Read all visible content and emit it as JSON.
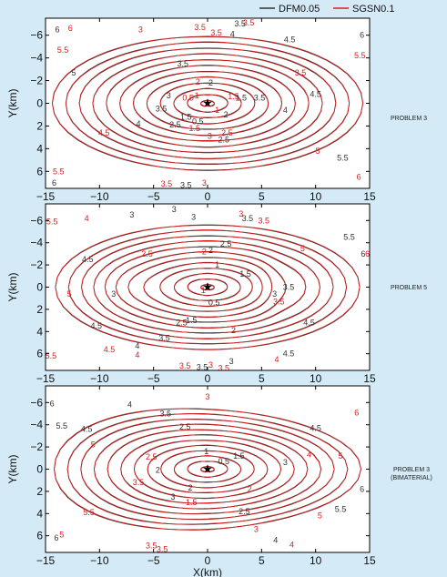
{
  "legend": {
    "items": [
      {
        "label": "DFM0.05",
        "color": "#333333"
      },
      {
        "label": "SGSN0.1",
        "color": "#d62020"
      }
    ],
    "placement": "top-center"
  },
  "chart_data": [
    {
      "type": "contour",
      "panel_label": "PROBLEM 3",
      "xlabel": "",
      "ylabel": "Y(km)",
      "xlim": [
        -15,
        15
      ],
      "ylim": [
        7.5,
        -7.5
      ],
      "x_ticks": [
        -15,
        -10,
        -5,
        0,
        5,
        10,
        15
      ],
      "y_ticks": [
        -6,
        -4,
        -2,
        0,
        2,
        4,
        6
      ],
      "hypocenter": {
        "x": 0,
        "y": 0,
        "marker": "star"
      },
      "contour_levels": [
        0.5,
        1,
        1.5,
        2,
        2.5,
        3,
        3.5,
        4,
        4.5,
        5,
        5.5,
        6
      ],
      "series": [
        {
          "name": "DFM0.05"
        },
        {
          "name": "SGSN0.1"
        }
      ],
      "contour_labels": [
        {
          "t": "0.5",
          "x": -0.9,
          "y": 1.6,
          "c": "k"
        },
        {
          "t": "1",
          "x": -1.0,
          "y": -0.7,
          "c": "r"
        },
        {
          "t": "0.5",
          "x": -1.8,
          "y": -0.5,
          "c": "r"
        },
        {
          "t": "1.5",
          "x": -2.0,
          "y": 1.2,
          "c": "k"
        },
        {
          "t": "1.5",
          "x": -1.2,
          "y": 2.2,
          "c": "r"
        },
        {
          "t": "2",
          "x": 0.3,
          "y": -1.8,
          "c": "k"
        },
        {
          "t": "2",
          "x": -0.9,
          "y": -1.9,
          "c": "r"
        },
        {
          "t": "2.5",
          "x": -3.0,
          "y": 1.9,
          "c": "k"
        },
        {
          "t": "2.5",
          "x": 1.5,
          "y": 3.2,
          "c": "k"
        },
        {
          "t": "1.5",
          "x": 2.4,
          "y": -0.6,
          "c": "r"
        },
        {
          "t": "1.5",
          "x": 3.1,
          "y": -0.5,
          "c": "k"
        },
        {
          "t": "1",
          "x": 0.9,
          "y": 0.6,
          "c": "r"
        },
        {
          "t": "3",
          "x": 0.2,
          "y": 2.9,
          "c": "r"
        },
        {
          "t": "3",
          "x": -3.6,
          "y": -0.7,
          "c": "k"
        },
        {
          "t": "3.5",
          "x": -2.3,
          "y": -3.5,
          "c": "k"
        },
        {
          "t": "3.5",
          "x": 4.8,
          "y": -0.5,
          "c": "k"
        },
        {
          "t": "3.5",
          "x": -4.3,
          "y": 0.5,
          "c": "k"
        },
        {
          "t": "3.5",
          "x": -0.7,
          "y": -6.7,
          "c": "r"
        },
        {
          "t": "3.5",
          "x": 0.8,
          "y": -6.2,
          "c": "r"
        },
        {
          "t": "3",
          "x": -6.2,
          "y": -6.5,
          "c": "r"
        },
        {
          "t": "3.5",
          "x": 3.0,
          "y": -7.0,
          "c": "k"
        },
        {
          "t": "4",
          "x": 2.3,
          "y": -6.1,
          "c": "k"
        },
        {
          "t": "4",
          "x": -6.4,
          "y": 1.8,
          "c": "k"
        },
        {
          "t": "4",
          "x": 7.2,
          "y": 0.6,
          "c": "k"
        },
        {
          "t": "3.5",
          "x": 8.6,
          "y": -2.7,
          "c": "r"
        },
        {
          "t": "4.5",
          "x": -9.6,
          "y": 2.6,
          "c": "r"
        },
        {
          "t": "4.5",
          "x": 7.6,
          "y": -5.6,
          "c": "k"
        },
        {
          "t": "4.5",
          "x": 10.0,
          "y": -0.8,
          "c": "k"
        },
        {
          "t": "5",
          "x": -12.4,
          "y": -2.7,
          "c": "k"
        },
        {
          "t": "5",
          "x": 10.2,
          "y": 4.2,
          "c": "r"
        },
        {
          "t": "5.5",
          "x": -13.4,
          "y": -4.7,
          "c": "r"
        },
        {
          "t": "5.5",
          "x": 12.5,
          "y": 4.8,
          "c": "k"
        },
        {
          "t": "5.5",
          "x": 14.1,
          "y": -4.2,
          "c": "r"
        },
        {
          "t": "6",
          "x": -13.9,
          "y": -6.5,
          "c": "k"
        },
        {
          "t": "6",
          "x": -12.7,
          "y": -6.6,
          "c": "r"
        },
        {
          "t": "6",
          "x": 14.3,
          "y": -6.0,
          "c": "k"
        },
        {
          "t": "5.5",
          "x": -13.8,
          "y": 6.0,
          "c": "r"
        },
        {
          "t": "6",
          "x": -14.2,
          "y": 7.0,
          "c": "k"
        },
        {
          "t": "6",
          "x": 14.0,
          "y": 6.5,
          "c": "r"
        },
        {
          "t": "3.5",
          "x": -2.0,
          "y": 7.2,
          "c": "k"
        },
        {
          "t": "3.5",
          "x": -3.8,
          "y": 7.1,
          "c": "r"
        },
        {
          "t": "3",
          "x": -0.3,
          "y": 7.0,
          "c": "r"
        },
        {
          "t": "3.5",
          "x": 3.8,
          "y": -7.1,
          "c": "r"
        },
        {
          "t": "2.5",
          "x": 1.8,
          "y": 2.6,
          "c": "r"
        },
        {
          "t": "2",
          "x": 1.7,
          "y": 1.0,
          "c": "k"
        }
      ]
    },
    {
      "type": "contour",
      "panel_label": "PROBLEM 5",
      "xlabel": "",
      "ylabel": "Y(km)",
      "xlim": [
        -15,
        15
      ],
      "ylim": [
        7.5,
        -7.5
      ],
      "x_ticks": [
        -15,
        -10,
        -5,
        0,
        5,
        10,
        15
      ],
      "y_ticks": [
        -6,
        -4,
        -2,
        0,
        2,
        4,
        6
      ],
      "hypocenter": {
        "x": 0,
        "y": 0,
        "marker": "star"
      },
      "contour_levels": [
        0.5,
        1,
        1.5,
        2,
        2.5,
        3,
        3.5,
        4,
        4.5,
        5,
        5.5,
        6
      ],
      "series": [
        {
          "name": "DFM0.05"
        },
        {
          "name": "SGSN0.1"
        }
      ],
      "contour_labels": [
        {
          "t": "0.5",
          "x": 0.6,
          "y": 1.4,
          "c": "k"
        },
        {
          "t": "1",
          "x": -0.4,
          "y": 0.3,
          "c": "r"
        },
        {
          "t": "1",
          "x": 0.9,
          "y": -2.0,
          "c": "k"
        },
        {
          "t": "2",
          "x": -0.3,
          "y": -3.2,
          "c": "r"
        },
        {
          "t": "2",
          "x": 0.3,
          "y": -3.3,
          "c": "k"
        },
        {
          "t": "2.5",
          "x": 1.7,
          "y": -3.9,
          "c": "k"
        },
        {
          "t": "2.5",
          "x": -5.6,
          "y": -3.0,
          "c": "r"
        },
        {
          "t": "3",
          "x": -3.1,
          "y": -7.0,
          "c": "k"
        },
        {
          "t": "3",
          "x": -1.3,
          "y": -6.3,
          "c": "k"
        },
        {
          "t": "3",
          "x": 3.1,
          "y": -6.6,
          "c": "r"
        },
        {
          "t": "3.5",
          "x": 3.7,
          "y": -6.2,
          "c": "k"
        },
        {
          "t": "3.5",
          "x": 5.2,
          "y": -6.0,
          "c": "r"
        },
        {
          "t": "3",
          "x": -7.0,
          "y": -6.5,
          "c": "k"
        },
        {
          "t": "4",
          "x": -11.2,
          "y": -6.2,
          "c": "r"
        },
        {
          "t": "4.5",
          "x": -11.1,
          "y": -2.5,
          "c": "k"
        },
        {
          "t": "5",
          "x": -12.8,
          "y": 0.6,
          "c": "r"
        },
        {
          "t": "5.5",
          "x": -14.4,
          "y": -5.9,
          "c": "r"
        },
        {
          "t": "5.5",
          "x": -14.5,
          "y": 6.2,
          "c": "r"
        },
        {
          "t": "4.5",
          "x": -10.3,
          "y": 3.5,
          "c": "k"
        },
        {
          "t": "4.5",
          "x": -9.1,
          "y": 5.6,
          "c": "r"
        },
        {
          "t": "4",
          "x": -6.5,
          "y": 5.3,
          "c": "k"
        },
        {
          "t": "4",
          "x": -6.5,
          "y": 6.1,
          "c": "r"
        },
        {
          "t": "3.5",
          "x": -4.0,
          "y": 4.6,
          "c": "k"
        },
        {
          "t": "3.5",
          "x": -0.5,
          "y": 7.2,
          "c": "k"
        },
        {
          "t": "3.5",
          "x": 1.5,
          "y": 7.3,
          "c": "r"
        },
        {
          "t": "3",
          "x": 0.3,
          "y": 7.0,
          "c": "r"
        },
        {
          "t": "3",
          "x": 2.2,
          "y": 6.7,
          "c": "k"
        },
        {
          "t": "2.5",
          "x": -2.4,
          "y": 3.2,
          "c": "k"
        },
        {
          "t": "2",
          "x": 2.4,
          "y": 3.9,
          "c": "k"
        },
        {
          "t": "1.5",
          "x": 3.5,
          "y": -1.2,
          "c": "k"
        },
        {
          "t": "1.5",
          "x": -1.5,
          "y": 3.0,
          "c": "k"
        },
        {
          "t": "3",
          "x": -8.7,
          "y": 0.6,
          "c": "k"
        },
        {
          "t": "3.5",
          "x": 7.5,
          "y": 0.0,
          "c": "k"
        },
        {
          "t": "3.5",
          "x": 6.6,
          "y": 1.3,
          "c": "r"
        },
        {
          "t": "3",
          "x": 6.2,
          "y": 0.6,
          "c": "k"
        },
        {
          "t": "4.5",
          "x": 9.4,
          "y": 3.2,
          "c": "k"
        },
        {
          "t": "4.5",
          "x": 7.5,
          "y": 6.0,
          "c": "k"
        },
        {
          "t": "4",
          "x": 6.4,
          "y": 6.5,
          "c": "r"
        },
        {
          "t": "5",
          "x": 8.8,
          "y": -3.5,
          "c": "r"
        },
        {
          "t": "5.5",
          "x": 13.1,
          "y": -4.5,
          "c": "k"
        },
        {
          "t": "6",
          "x": 14.8,
          "y": -3.0,
          "c": "r"
        },
        {
          "t": "6",
          "x": 14.4,
          "y": -3.0,
          "c": "k"
        },
        {
          "t": "3.5",
          "x": -2.1,
          "y": 7.1,
          "c": "r"
        }
      ]
    },
    {
      "type": "contour",
      "panel_label": "PROBLEM 3 (BIMATERIAL)",
      "xlabel": "X(km)",
      "ylabel": "Y(km)",
      "xlim": [
        -15,
        15
      ],
      "ylim": [
        7.5,
        -7.5
      ],
      "x_ticks": [
        -15,
        -10,
        -5,
        0,
        5,
        10,
        15
      ],
      "y_ticks": [
        -6,
        -4,
        -2,
        0,
        2,
        4,
        6
      ],
      "hypocenter": {
        "x": 0,
        "y": 0,
        "marker": "star"
      },
      "contour_levels": [
        0.5,
        1,
        1.5,
        2,
        2.5,
        3,
        3.5,
        4,
        4.5,
        5,
        5.5,
        6
      ],
      "series": [
        {
          "name": "DFM0.05"
        },
        {
          "name": "SGSN0.1"
        }
      ],
      "contour_labels": [
        {
          "t": "0.5",
          "x": 1.5,
          "y": -0.7,
          "c": "k"
        },
        {
          "t": "1",
          "x": -0.1,
          "y": -1.6,
          "c": "k"
        },
        {
          "t": "1.5",
          "x": 2.9,
          "y": -1.2,
          "c": "k"
        },
        {
          "t": "1.5",
          "x": -1.5,
          "y": 3.0,
          "c": "r"
        },
        {
          "t": "2",
          "x": -1.6,
          "y": 1.7,
          "c": "k"
        },
        {
          "t": "2",
          "x": -4.6,
          "y": 0.1,
          "c": "k"
        },
        {
          "t": "2",
          "x": 3.9,
          "y": 1.8,
          "c": "r"
        },
        {
          "t": "2.5",
          "x": -2.1,
          "y": -3.8,
          "c": "k"
        },
        {
          "t": "2.5",
          "x": -5.2,
          "y": -1.1,
          "c": "r"
        },
        {
          "t": "2.5",
          "x": 3.4,
          "y": 3.8,
          "c": "k"
        },
        {
          "t": "3",
          "x": -3.2,
          "y": 2.5,
          "c": "k"
        },
        {
          "t": "3",
          "x": 0.0,
          "y": -6.5,
          "c": "r"
        },
        {
          "t": "3",
          "x": 4.5,
          "y": 5.4,
          "c": "r"
        },
        {
          "t": "3",
          "x": 7.2,
          "y": -0.6,
          "c": "k"
        },
        {
          "t": "3.5",
          "x": -3.9,
          "y": -5.0,
          "c": "k"
        },
        {
          "t": "3.5",
          "x": -6.4,
          "y": 1.2,
          "c": "r"
        },
        {
          "t": "3.5",
          "x": -5.2,
          "y": 6.9,
          "c": "r"
        },
        {
          "t": "4",
          "x": -7.2,
          "y": -5.8,
          "c": "k"
        },
        {
          "t": "4",
          "x": 9.4,
          "y": -1.3,
          "c": "r"
        },
        {
          "t": "4",
          "x": 6.3,
          "y": 6.4,
          "c": "k"
        },
        {
          "t": "4.5",
          "x": -11.2,
          "y": -3.6,
          "c": "k"
        },
        {
          "t": "4.5",
          "x": 10.0,
          "y": -3.7,
          "c": "k"
        },
        {
          "t": "5",
          "x": -10.6,
          "y": -2.2,
          "c": "r"
        },
        {
          "t": "5",
          "x": 12.3,
          "y": -1.2,
          "c": "r"
        },
        {
          "t": "5.5",
          "x": -13.5,
          "y": -3.9,
          "c": "k"
        },
        {
          "t": "5.5",
          "x": -11.0,
          "y": 3.9,
          "c": "r"
        },
        {
          "t": "5.5",
          "x": 12.3,
          "y": 3.6,
          "c": "k"
        },
        {
          "t": "5",
          "x": 10.4,
          "y": 4.2,
          "c": "r"
        },
        {
          "t": "6",
          "x": -14.4,
          "y": -5.9,
          "c": "k"
        },
        {
          "t": "6",
          "x": -14.0,
          "y": 6.2,
          "c": "k"
        },
        {
          "t": "6",
          "x": 14.3,
          "y": 1.8,
          "c": "k"
        },
        {
          "t": "6",
          "x": 13.8,
          "y": -5.1,
          "c": "r"
        },
        {
          "t": "5",
          "x": -13.5,
          "y": 5.9,
          "c": "r"
        },
        {
          "t": "3.5",
          "x": -4.2,
          "y": 7.2,
          "c": "r"
        },
        {
          "t": "4",
          "x": 7.8,
          "y": 6.8,
          "c": "r"
        }
      ]
    }
  ]
}
